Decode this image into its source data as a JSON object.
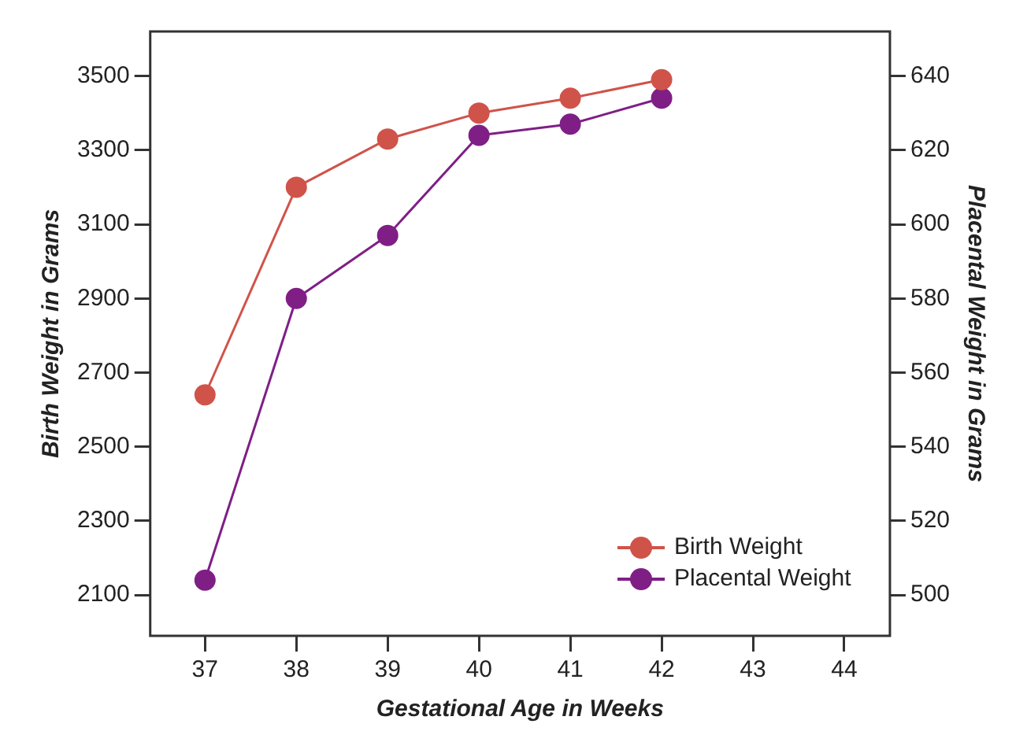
{
  "chart_data": {
    "type": "line",
    "xlabel": "Gestational Age in Weeks",
    "ylabel": "Birth Weight in Grams",
    "y2label": "Placental Weight in Grams",
    "x": [
      37,
      38,
      39,
      40,
      41,
      42
    ],
    "series": [
      {
        "name": "Birth Weight",
        "color": "#d0534a",
        "values": [
          2640,
          3200,
          3330,
          3400,
          3440,
          3490
        ]
      },
      {
        "name": "Placental Weight",
        "color": "#7f1f86",
        "axis": "y2",
        "values": [
          504,
          580,
          597,
          624,
          627,
          634
        ]
      }
    ],
    "xlim": [
      36.4,
      44.5
    ],
    "xticks": [
      37,
      38,
      39,
      40,
      41,
      42,
      43,
      44
    ],
    "ylim": [
      1990,
      3620
    ],
    "yticks": [
      2100,
      2300,
      2500,
      2700,
      2900,
      3100,
      3300,
      3500
    ],
    "y2lim": [
      489,
      652
    ],
    "y2ticks": [
      500,
      520,
      540,
      560,
      580,
      600,
      620,
      640
    ],
    "marker": "circle",
    "line_style": "solid",
    "legend": "bottom right",
    "grid": false
  }
}
